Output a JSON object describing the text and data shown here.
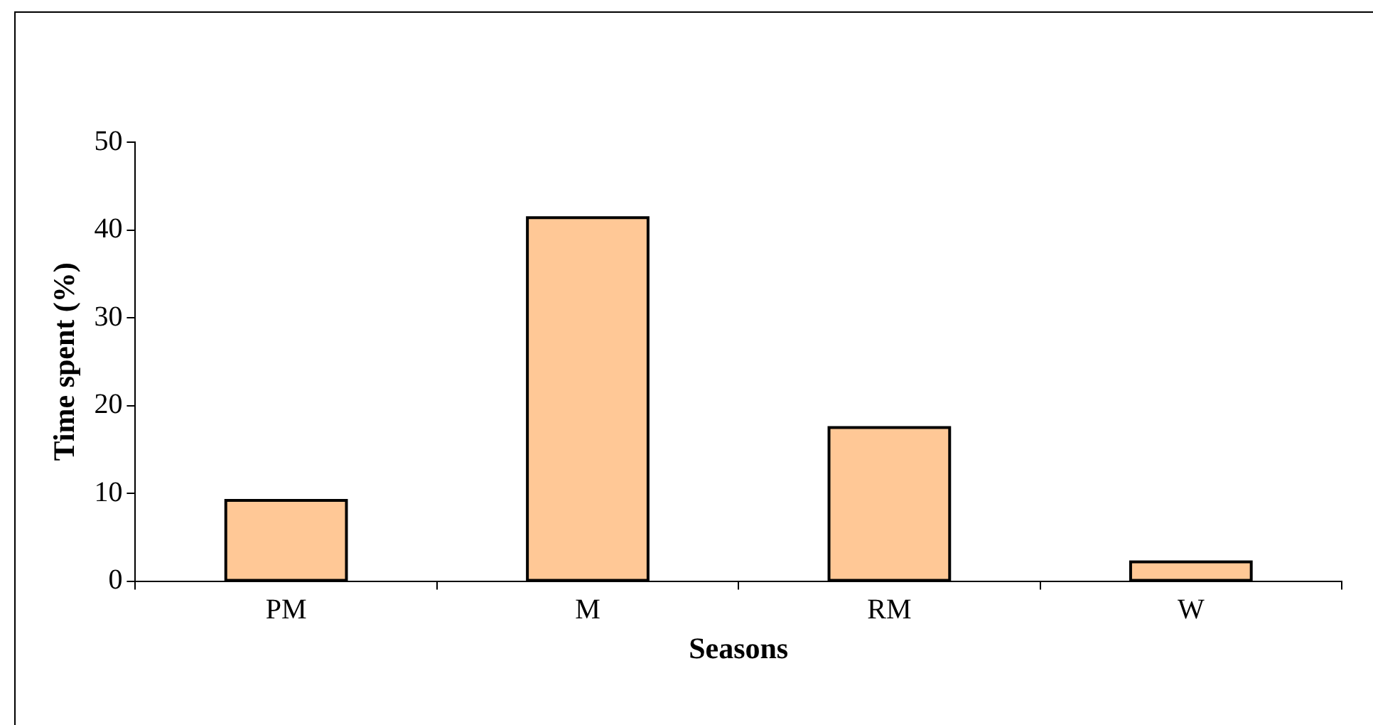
{
  "chart_data": {
    "type": "bar",
    "xlabel": "Seasons",
    "ylabel": "Time spent (%)",
    "categories": [
      "PM",
      "M",
      "RM",
      "W"
    ],
    "values": [
      9.2,
      41.4,
      17.5,
      2.2
    ],
    "color": "#ffc896",
    "ylim": [
      0,
      50
    ],
    "yticks": [
      0,
      10,
      20,
      30,
      40,
      50
    ],
    "grid": false,
    "legend": false
  }
}
